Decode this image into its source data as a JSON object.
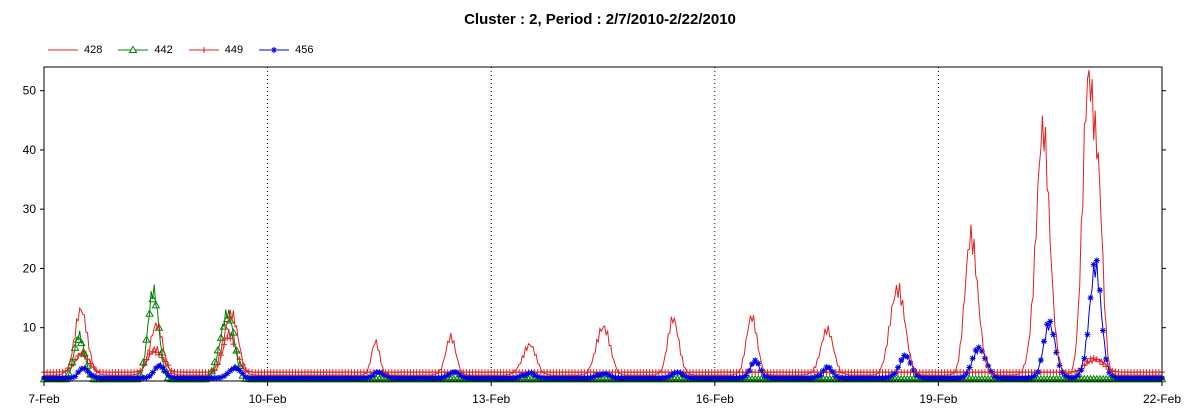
{
  "chart_data": {
    "type": "line",
    "title": "Cluster : 2, Period : 2/7/2010-2/22/2010",
    "xlabel": "",
    "ylabel": "",
    "x_range_days": [
      0,
      15
    ],
    "ylim": [
      1,
      54
    ],
    "y_ticks": [
      10,
      20,
      30,
      40,
      50
    ],
    "x_ticks": [
      {
        "day": 0,
        "label": "7-Feb"
      },
      {
        "day": 3,
        "label": "10-Feb"
      },
      {
        "day": 6,
        "label": "13-Feb"
      },
      {
        "day": 9,
        "label": "16-Feb"
      },
      {
        "day": 12,
        "label": "19-Feb"
      },
      {
        "day": 15,
        "label": "22-Feb"
      }
    ],
    "grid": "vertical dotted at x ticks",
    "legend_position": "top-left",
    "series": [
      {
        "name": "428",
        "color": "#e02020",
        "marker": "none",
        "baseline": 2,
        "peaks": [
          [
            0.5,
            12,
            0.13
          ],
          [
            1.5,
            10,
            0.13
          ],
          [
            2.5,
            13,
            0.13
          ],
          [
            4.45,
            7,
            0.08
          ],
          [
            5.45,
            8,
            0.1
          ],
          [
            6.5,
            7,
            0.13
          ],
          [
            7.5,
            11,
            0.12
          ],
          [
            8.45,
            11,
            0.11
          ],
          [
            9.5,
            11,
            0.11
          ],
          [
            10.5,
            9,
            0.13
          ],
          [
            11.45,
            18,
            0.13
          ],
          [
            12.45,
            26,
            0.12
          ],
          [
            13.4,
            40,
            0.14
          ],
          [
            14.0,
            53,
            0.1
          ],
          [
            14.15,
            29,
            0.09
          ]
        ]
      },
      {
        "name": "442",
        "color": "#008000",
        "marker": "triangle",
        "baseline": 1,
        "peaks": [
          [
            0.48,
            9,
            0.1
          ],
          [
            1.47,
            15,
            0.11
          ],
          [
            2.45,
            12,
            0.14
          ]
        ]
      },
      {
        "name": "449",
        "color": "#e02020",
        "marker": "plus",
        "baseline": 2.5,
        "peaks": [
          [
            0.5,
            6,
            0.12
          ],
          [
            1.5,
            7,
            0.12
          ],
          [
            2.5,
            9,
            0.12
          ],
          [
            14.1,
            5,
            0.15
          ]
        ]
      },
      {
        "name": "456",
        "color": "#0000e0",
        "marker": "star",
        "baseline": 1.5,
        "peaks": [
          [
            0.55,
            3,
            0.1
          ],
          [
            1.55,
            3.5,
            0.1
          ],
          [
            2.55,
            3.5,
            0.1
          ],
          [
            4.5,
            2.5,
            0.1
          ],
          [
            5.5,
            2.5,
            0.1
          ],
          [
            6.5,
            2.5,
            0.1
          ],
          [
            7.5,
            2.5,
            0.1
          ],
          [
            8.5,
            2.5,
            0.1
          ],
          [
            9.55,
            4,
            0.1
          ],
          [
            10.5,
            3,
            0.1
          ],
          [
            11.55,
            5,
            0.12
          ],
          [
            12.55,
            7,
            0.12
          ],
          [
            13.5,
            10,
            0.12
          ],
          [
            14.1,
            19,
            0.12
          ]
        ]
      }
    ]
  }
}
